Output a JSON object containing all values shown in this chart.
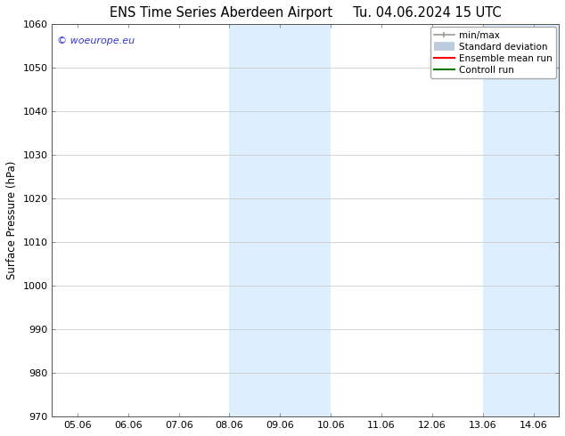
{
  "title": "ENS Time Series Aberdeen Airport",
  "title2": "Tu. 04.06.2024 15 UTC",
  "ylabel": "Surface Pressure (hPa)",
  "ylim": [
    970,
    1060
  ],
  "yticks": [
    970,
    980,
    990,
    1000,
    1010,
    1020,
    1030,
    1040,
    1050,
    1060
  ],
  "xtick_labels": [
    "05.06",
    "06.06",
    "07.06",
    "08.06",
    "09.06",
    "10.06",
    "11.06",
    "12.06",
    "13.06",
    "14.06"
  ],
  "xtick_positions": [
    0,
    1,
    2,
    3,
    4,
    5,
    6,
    7,
    8,
    9
  ],
  "xlim": [
    -0.5,
    9.5
  ],
  "shaded_bands": [
    {
      "x_start": 3.0,
      "x_end": 4.0,
      "color": "#ddeeff"
    },
    {
      "x_start": 4.0,
      "x_end": 5.0,
      "color": "#ddeeff"
    },
    {
      "x_start": 8.0,
      "x_end": 9.0,
      "color": "#ddeeff"
    },
    {
      "x_start": 9.0,
      "x_end": 9.5,
      "color": "#ddeeff"
    }
  ],
  "watermark_text": "© woeurope.eu",
  "watermark_color": "#3333cc",
  "legend_items": [
    {
      "label": "min/max",
      "color": "#999999",
      "lw": 1.2,
      "ls": "-"
    },
    {
      "label": "Standard deviation",
      "color": "#bbccdd",
      "lw": 7,
      "ls": "-"
    },
    {
      "label": "Ensemble mean run",
      "color": "#ff0000",
      "lw": 1.5,
      "ls": "-"
    },
    {
      "label": "Controll run",
      "color": "#007700",
      "lw": 1.5,
      "ls": "-"
    }
  ],
  "bg_color": "#ffffff",
  "grid_color": "#cccccc",
  "title_fontsize": 10.5,
  "axis_fontsize": 8.5,
  "tick_fontsize": 8.0,
  "legend_fontsize": 7.5
}
